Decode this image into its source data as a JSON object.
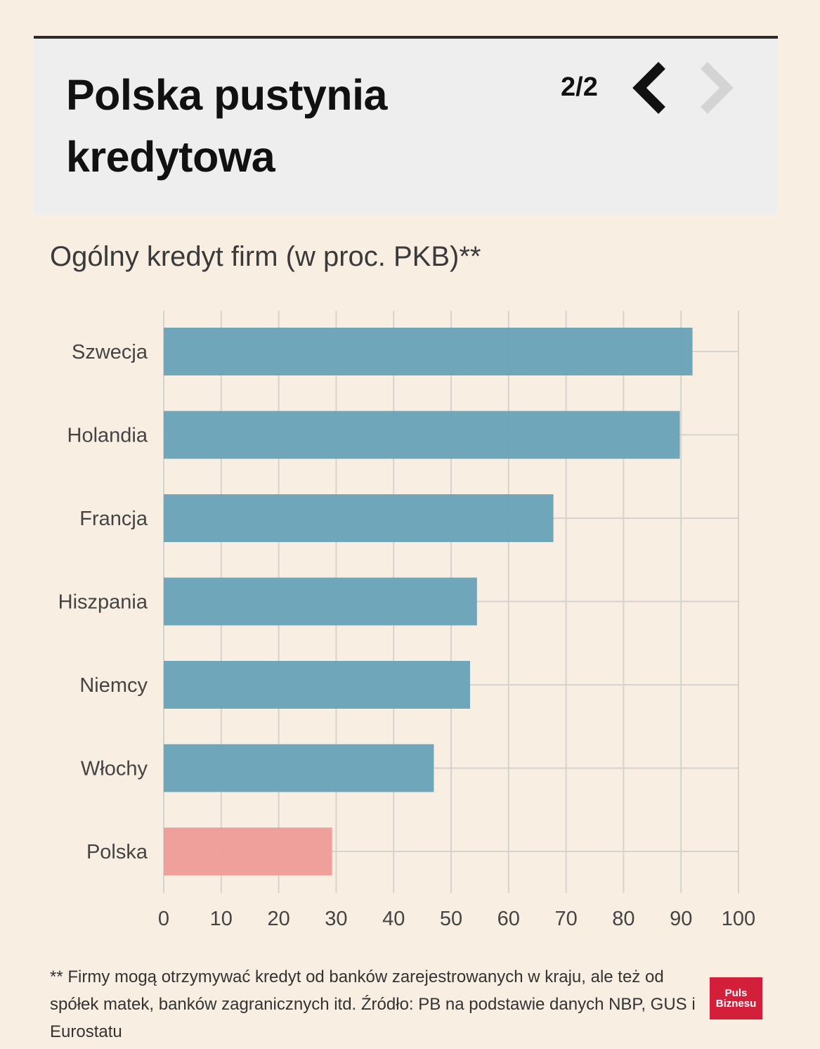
{
  "header": {
    "title": "Polska pustynia kredytowa",
    "pager": "2/2",
    "prev_icon": "chevron-left-icon",
    "next_icon": "chevron-right-icon"
  },
  "colors": {
    "bar": "#6ba3b8",
    "highlight": "#ee9d98",
    "grid": "#d6d3cf",
    "header_bg": "#eeeeee",
    "page_bg": "#f8eee2"
  },
  "chart_data": {
    "type": "bar",
    "orientation": "horizontal",
    "title": "Ogólny kredyt firm (w proc. PKB)**",
    "categories": [
      "Szwecja",
      "Holandia",
      "Francja",
      "Hiszpania",
      "Niemcy",
      "Włochy",
      "Polska"
    ],
    "values": [
      92,
      89.8,
      67.8,
      54.5,
      53.3,
      47,
      29.3
    ],
    "highlight": "Polska",
    "xlim": [
      0,
      100
    ],
    "xticks": [
      0,
      10,
      20,
      30,
      40,
      50,
      60,
      70,
      80,
      90,
      100
    ],
    "grid": true
  },
  "footnote": "** Firmy mogą otrzymywać kredyt od banków zarejestrowanych w kraju, ale też od spółek matek, banków zagranicznych itd. Źródło: PB na podstawie danych NBP, GUS i Eurostatu",
  "logo": {
    "line1": "Puls",
    "line2": "Biznesu"
  }
}
